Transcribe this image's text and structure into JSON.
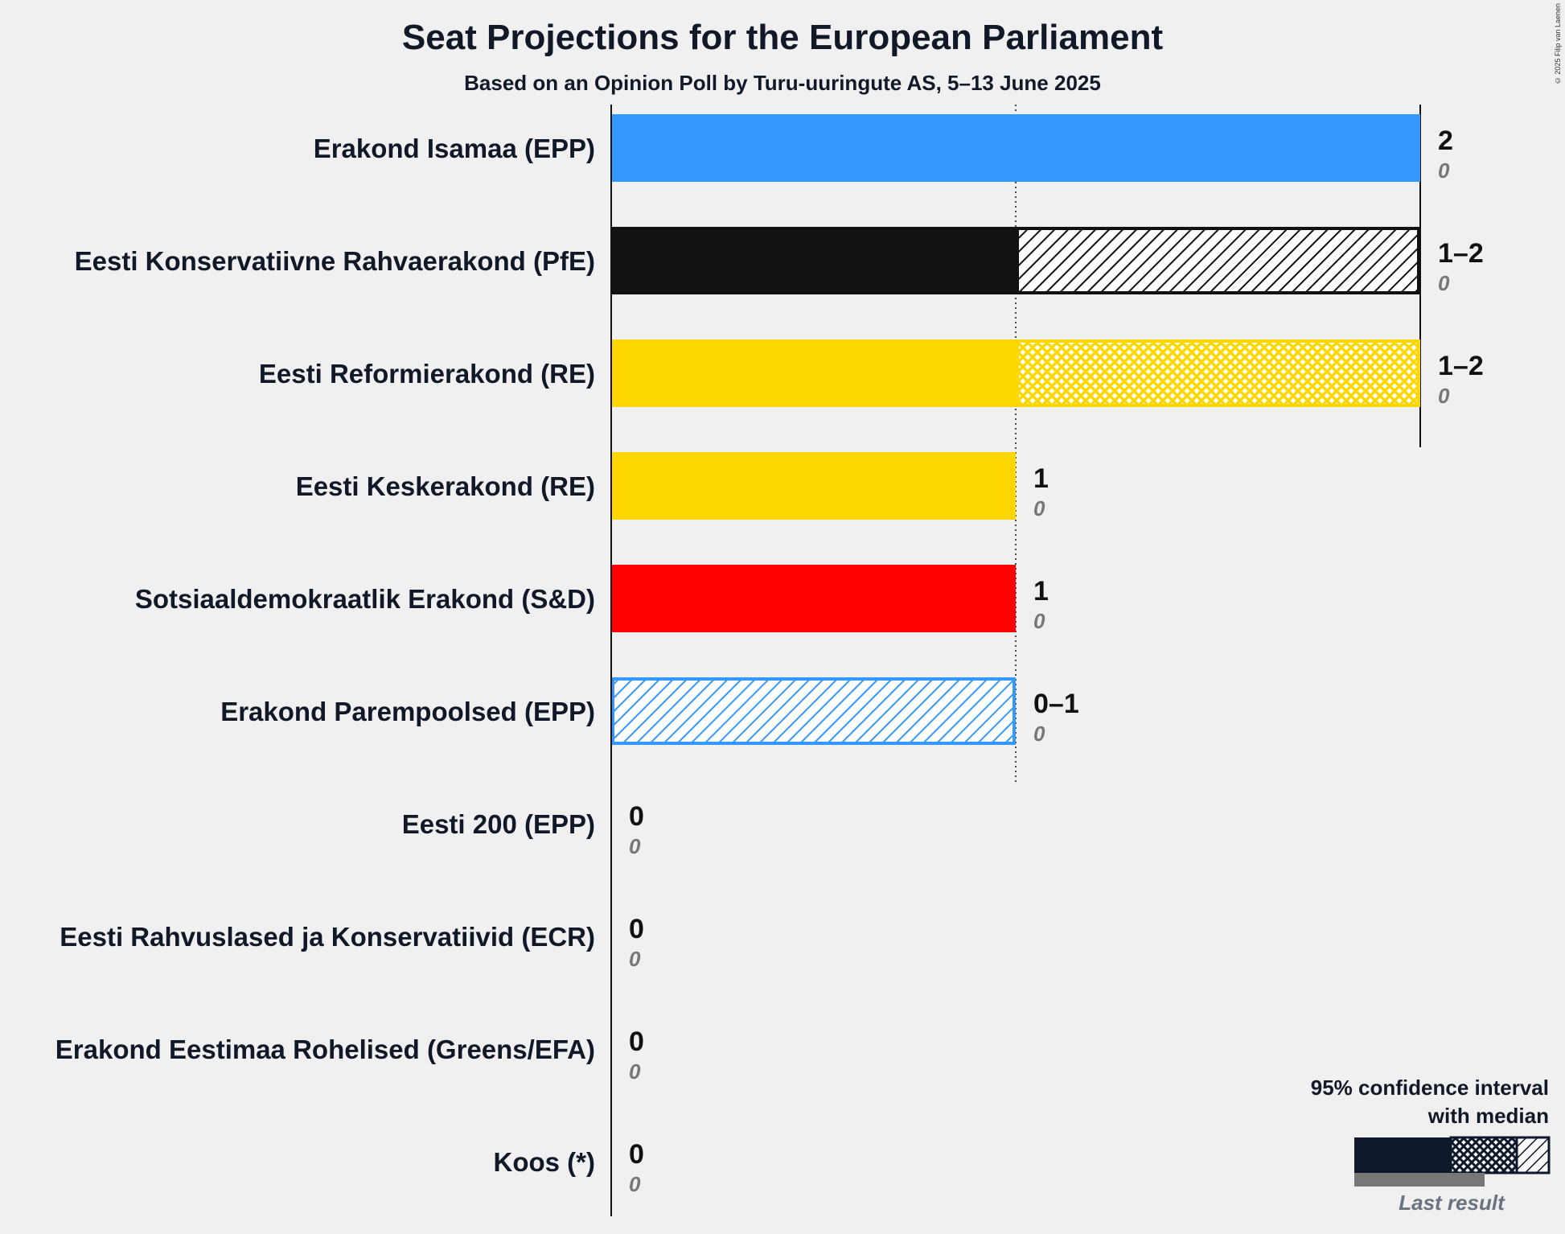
{
  "title": "Seat Projections for the European Parliament",
  "subtitle": "Based on an Opinion Poll by Turu-uuringute AS, 5–13 June 2025",
  "copyright": "© 2025 Filip van Laenen",
  "legend": {
    "title_line1": "95% confidence interval",
    "title_line2": "with median",
    "last_result": "Last result"
  },
  "chart_data": {
    "type": "bar",
    "orientation": "horizontal",
    "xlim": [
      0,
      2
    ],
    "gridlines": [
      1,
      2
    ],
    "parties": [
      {
        "name": "Erakond Isamaa (EPP)",
        "color": "#3399ff",
        "low": 2,
        "median": 2,
        "high": 2,
        "range_label": "2",
        "last_result": 0,
        "last_label": "0"
      },
      {
        "name": "Eesti Konservatiivne Rahvaerakond (PfE)",
        "color": "#111111",
        "low": 1,
        "median": 1,
        "high": 2,
        "range_label": "1–2",
        "last_result": 0,
        "last_label": "0"
      },
      {
        "name": "Eesti Reformierakond (RE)",
        "color": "#ffd700",
        "low": 1,
        "median": 1,
        "high": 2,
        "range_label": "1–2",
        "last_result": 0,
        "last_label": "0"
      },
      {
        "name": "Eesti Keskerakond (RE)",
        "color": "#ffd700",
        "low": 1,
        "median": 1,
        "high": 1,
        "range_label": "1",
        "last_result": 0,
        "last_label": "0"
      },
      {
        "name": "Sotsiaaldemokraatlik Erakond (S&D)",
        "color": "#ff0000",
        "low": 1,
        "median": 1,
        "high": 1,
        "range_label": "1",
        "last_result": 0,
        "last_label": "0"
      },
      {
        "name": "Erakond Parempoolsed (EPP)",
        "color": "#3399ff",
        "low": 0,
        "median": 0,
        "high": 1,
        "range_label": "0–1",
        "last_result": 0,
        "last_label": "0"
      },
      {
        "name": "Eesti 200 (EPP)",
        "color": "#3399ff",
        "low": 0,
        "median": 0,
        "high": 0,
        "range_label": "0",
        "last_result": 0,
        "last_label": "0"
      },
      {
        "name": "Eesti Rahvuslased ja Konservatiivid (ECR)",
        "color": "#1e3a8a",
        "low": 0,
        "median": 0,
        "high": 0,
        "range_label": "0",
        "last_result": 0,
        "last_label": "0"
      },
      {
        "name": "Erakond Eestimaa Rohelised (Greens/EFA)",
        "color": "#22c55e",
        "low": 0,
        "median": 0,
        "high": 0,
        "range_label": "0",
        "last_result": 0,
        "last_label": "0"
      },
      {
        "name": "Koos (*)",
        "color": "#888888",
        "low": 0,
        "median": 0,
        "high": 0,
        "range_label": "0",
        "last_result": 0,
        "last_label": "0"
      }
    ]
  }
}
